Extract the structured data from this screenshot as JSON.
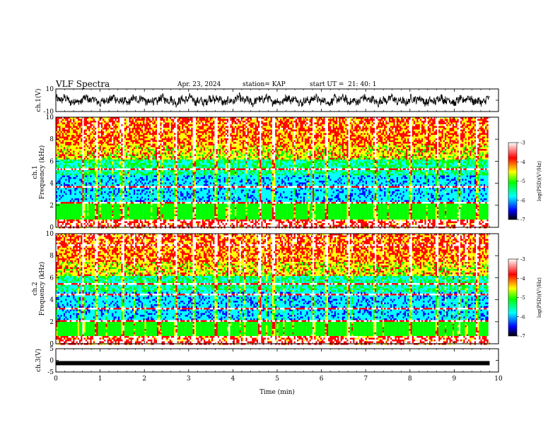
{
  "header": {
    "title": "VLF Spectra",
    "date": "Apr. 23, 2024",
    "station": "station= KAP",
    "start_ut": "start UT =  21: 40: 1"
  },
  "chart_data": [
    {
      "type": "line",
      "name": "ch1-waveform",
      "ylabel": "ch.1(V)",
      "ylim": [
        -10,
        10
      ],
      "ytick_labels": [
        "-10",
        "10"
      ],
      "xlim": [
        0,
        10
      ],
      "note_values": "noisy waveform oscillating between about -6 and 7 V over 0 to 9.8 min"
    },
    {
      "type": "heatmap",
      "name": "ch1-spectrogram",
      "ylabel": "ch.1\nFrequency (kHz)",
      "ylabel_lines": [
        "ch.1",
        "Frequency (kHz)"
      ],
      "ylim": [
        0,
        10
      ],
      "yticks": [
        0,
        2,
        4,
        6,
        8,
        10
      ],
      "xlim": [
        0,
        10
      ],
      "data_extent_x": [
        0,
        9.8
      ],
      "colorbar": {
        "label": "log(PSD)(V²/Hz)",
        "min": -7,
        "max": -3,
        "ticks": [
          -7,
          -6,
          -5,
          -4,
          -3
        ]
      },
      "strong_lines_khz": [
        0.3,
        0.6,
        2.3,
        3.8,
        5.3
      ],
      "impulsive_bursts_min": [
        0.6,
        0.9,
        1.5,
        2.3,
        2.7,
        3.1,
        3.6,
        3.9,
        4.6,
        4.9,
        5.8,
        6.1,
        6.6,
        7.2,
        8.0,
        8.6,
        9.1,
        9.5
      ]
    },
    {
      "type": "heatmap",
      "name": "ch2-spectrogram",
      "ylabel": "ch.2\nFrequency (kHz)",
      "ylabel_lines": [
        "ch.2",
        "Frequency (kHz)"
      ],
      "ylim": [
        0,
        10
      ],
      "yticks": [
        0,
        2,
        4,
        6,
        8,
        10
      ],
      "xlim": [
        0,
        10
      ],
      "data_extent_x": [
        0,
        9.8
      ],
      "colorbar": {
        "label": "log(PSD)(V²/Hz)",
        "min": -7,
        "max": -3,
        "ticks": [
          -7,
          -6,
          -5,
          -4,
          -3
        ]
      },
      "strong_lines_khz": [
        0.3,
        2.1,
        3.3,
        4.6,
        5.4,
        8.9
      ],
      "impulsive_bursts_min": [
        0.6,
        0.9,
        1.5,
        2.3,
        2.7,
        3.1,
        3.6,
        3.9,
        4.6,
        4.9,
        5.8,
        6.1,
        6.6,
        7.2,
        8.0,
        8.6,
        9.1,
        9.5
      ]
    },
    {
      "type": "line",
      "name": "ch3-waveform",
      "ylabel": "ch.3(V)",
      "ylim": [
        -5,
        5
      ],
      "ytick_labels": [
        "-5",
        "0",
        "5"
      ],
      "xlim": [
        0,
        10
      ],
      "value": -1.2,
      "xlabel": "Time (min)",
      "xticks": [
        0,
        1,
        2,
        3,
        4,
        5,
        6,
        7,
        8,
        9,
        10
      ]
    }
  ],
  "colors": {
    "frame": "#000000",
    "colormap": [
      "#000000",
      "#0000ff",
      "#00ffff",
      "#00ff00",
      "#ffff00",
      "#ff0000",
      "#ffffff"
    ]
  }
}
